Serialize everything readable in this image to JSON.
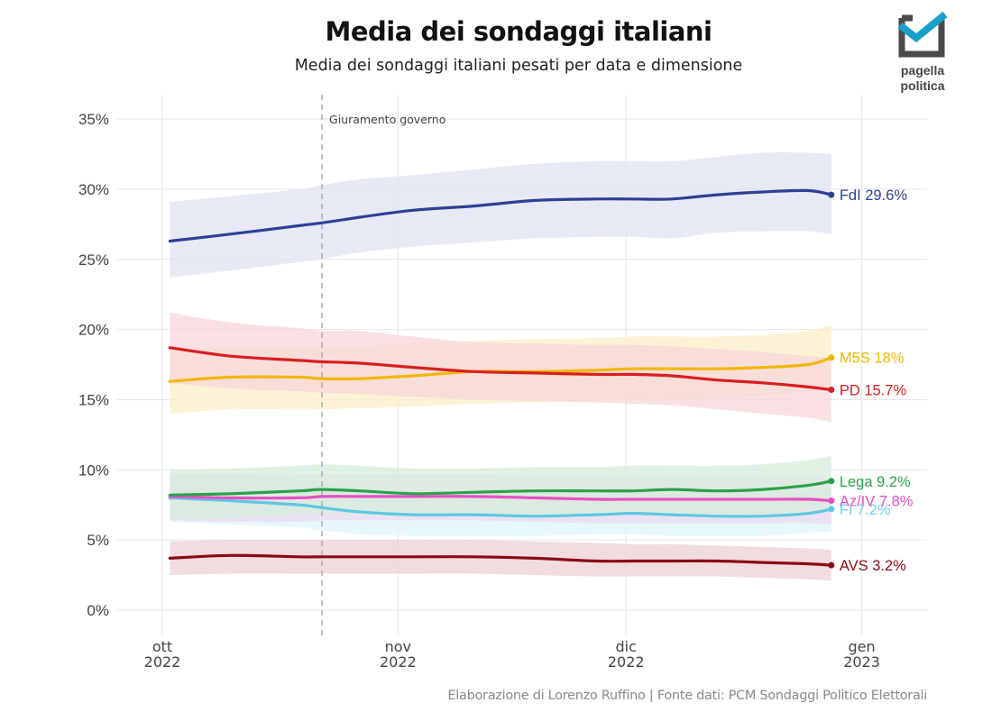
{
  "header": {
    "title": "Media dei sondaggi italiani",
    "subtitle": "Media dei sondaggi italiani pesati per data e dimensione"
  },
  "logo": {
    "icon": "checkbox-check-icon",
    "line1": "pagella",
    "line2": "politica",
    "colors": {
      "box": "#4a4a4a",
      "check": "#1aa0c8"
    }
  },
  "caption": "Elaborazione di Lorenzo Ruffino | Fonte dati: PCM Sondaggi Politico Elettorali",
  "chart_data": {
    "type": "line",
    "title": "Media dei sondaggi italiani",
    "subtitle": "Media dei sondaggi italiani pesati per data e dimensione",
    "xlabel": "",
    "ylabel": "",
    "x_unit": "days since 2022-10-01",
    "xlim": [
      -10,
      62
    ],
    "ylim": [
      -1.5,
      36
    ],
    "grid": true,
    "legend": "end-of-line labels (right)",
    "x_ticks": [
      {
        "day": 0,
        "line1": "ott",
        "line2": "2022"
      },
      {
        "day": 31,
        "line1": "nov",
        "line2": "2022"
      },
      {
        "day": 61,
        "line1": "dic",
        "line2": "2022"
      },
      {
        "day": 92,
        "line1": "gen",
        "line2": "2023"
      }
    ],
    "y_ticks": [
      {
        "value": 0,
        "label": "0%"
      },
      {
        "value": 5,
        "label": "5%"
      },
      {
        "value": 10,
        "label": "10%"
      },
      {
        "value": 15,
        "label": "15%"
      },
      {
        "value": 20,
        "label": "20%"
      },
      {
        "value": 25,
        "label": "25%"
      },
      {
        "value": 30,
        "label": "30%"
      },
      {
        "value": 35,
        "label": "35%"
      }
    ],
    "annotations": [
      {
        "day": 21,
        "label": "Giuramento governo",
        "style": "dashed-vertical"
      }
    ],
    "x": [
      1,
      9,
      18,
      21,
      26,
      33,
      41,
      49,
      57,
      62,
      67,
      73,
      79,
      85,
      88
    ],
    "series": [
      {
        "name": "FdI",
        "end_label": "FdI 29.6%",
        "color": "#2e3f96",
        "band_color": "#dfe3f2",
        "values": [
          26.3,
          26.8,
          27.4,
          27.6,
          28.0,
          28.5,
          28.8,
          29.2,
          29.3,
          29.3,
          29.3,
          29.6,
          29.8,
          29.9,
          29.6
        ],
        "lower": [
          23.7,
          24.2,
          24.8,
          25.0,
          25.5,
          25.9,
          26.2,
          26.5,
          26.6,
          26.6,
          26.5,
          26.9,
          27.0,
          27.0,
          26.8
        ],
        "upper": [
          29.1,
          29.5,
          30.0,
          30.3,
          30.7,
          31.0,
          31.4,
          31.8,
          32.0,
          32.0,
          32.0,
          32.3,
          32.6,
          32.6,
          32.5
        ]
      },
      {
        "name": "M5S",
        "end_label": "M5S 18%",
        "color": "#f2b705",
        "band_color": "#fbefc8",
        "values": [
          16.3,
          16.6,
          16.6,
          16.5,
          16.5,
          16.7,
          17.0,
          17.0,
          17.1,
          17.2,
          17.2,
          17.2,
          17.3,
          17.5,
          18.0
        ],
        "lower": [
          14.0,
          14.3,
          14.3,
          14.3,
          14.4,
          14.5,
          14.7,
          14.8,
          14.9,
          15.0,
          15.0,
          15.1,
          15.3,
          15.6,
          15.7
        ],
        "upper": [
          18.6,
          18.8,
          18.8,
          18.8,
          18.8,
          19.0,
          19.2,
          19.3,
          19.4,
          19.5,
          19.5,
          19.5,
          19.6,
          19.9,
          20.3
        ]
      },
      {
        "name": "PD",
        "end_label": "PD 15.7%",
        "color": "#d81e1e",
        "band_color": "#f7d5da",
        "values": [
          18.7,
          18.1,
          17.8,
          17.7,
          17.6,
          17.3,
          17.0,
          16.9,
          16.8,
          16.8,
          16.7,
          16.4,
          16.2,
          15.9,
          15.7
        ],
        "lower": [
          16.2,
          15.8,
          15.6,
          15.5,
          15.4,
          15.2,
          15.0,
          14.9,
          14.8,
          14.7,
          14.6,
          14.3,
          14.0,
          13.7,
          13.4
        ],
        "upper": [
          21.2,
          20.5,
          20.1,
          19.9,
          19.9,
          19.5,
          19.1,
          19.0,
          18.9,
          18.9,
          18.8,
          18.6,
          18.4,
          18.1,
          18.0
        ]
      },
      {
        "name": "Lega",
        "end_label": "Lega 9.2%",
        "color": "#2ba14a",
        "band_color": "#d6eedb",
        "values": [
          8.2,
          8.3,
          8.5,
          8.6,
          8.5,
          8.3,
          8.4,
          8.5,
          8.5,
          8.5,
          8.6,
          8.5,
          8.6,
          8.9,
          9.2
        ],
        "lower": [
          6.5,
          6.6,
          6.8,
          6.9,
          6.8,
          6.7,
          6.7,
          6.8,
          6.8,
          6.8,
          6.8,
          6.8,
          6.8,
          7.1,
          7.3
        ],
        "upper": [
          10.0,
          10.1,
          10.3,
          10.4,
          10.3,
          10.1,
          10.1,
          10.2,
          10.2,
          10.3,
          10.3,
          10.3,
          10.4,
          10.7,
          11.0
        ]
      },
      {
        "name": "Az/IV",
        "end_label": "Az/IV 7.8%",
        "color": "#e64fc2",
        "band_color": "#ecdaf2",
        "values": [
          8.1,
          8.0,
          8.0,
          8.1,
          8.1,
          8.1,
          8.1,
          8.0,
          7.9,
          7.9,
          7.9,
          7.9,
          7.9,
          7.9,
          7.8
        ],
        "lower": [
          6.4,
          6.3,
          6.3,
          6.4,
          6.4,
          6.4,
          6.4,
          6.3,
          6.2,
          6.2,
          6.2,
          6.2,
          6.2,
          6.2,
          6.1
        ],
        "upper": [
          9.7,
          9.7,
          9.7,
          9.7,
          9.7,
          9.7,
          9.7,
          9.6,
          9.5,
          9.5,
          9.5,
          9.5,
          9.5,
          9.5,
          9.4
        ]
      },
      {
        "name": "FI",
        "end_label": "FI 7.2%",
        "color": "#5ec8e3",
        "band_color": "#def6f9",
        "values": [
          8.0,
          7.8,
          7.5,
          7.3,
          7.0,
          6.8,
          6.8,
          6.7,
          6.8,
          6.9,
          6.8,
          6.7,
          6.7,
          6.9,
          7.2
        ],
        "lower": [
          6.3,
          6.1,
          5.9,
          5.7,
          5.4,
          5.3,
          5.3,
          5.3,
          5.4,
          5.4,
          5.3,
          5.3,
          5.3,
          5.5,
          5.6
        ],
        "upper": [
          9.8,
          9.6,
          9.3,
          9.1,
          8.7,
          8.4,
          8.4,
          8.3,
          8.3,
          8.4,
          8.3,
          8.2,
          8.2,
          8.4,
          8.7
        ]
      },
      {
        "name": "AVS",
        "end_label": "AVS 3.2%",
        "color": "#8b0a16",
        "band_color": "#ecd2d6",
        "values": [
          3.7,
          3.9,
          3.8,
          3.8,
          3.8,
          3.8,
          3.8,
          3.7,
          3.5,
          3.5,
          3.5,
          3.5,
          3.4,
          3.3,
          3.2
        ],
        "lower": [
          2.5,
          2.6,
          2.6,
          2.6,
          2.6,
          2.6,
          2.6,
          2.5,
          2.4,
          2.4,
          2.4,
          2.4,
          2.3,
          2.2,
          2.1
        ],
        "upper": [
          4.9,
          5.0,
          5.0,
          5.0,
          5.0,
          5.0,
          5.0,
          4.9,
          4.8,
          4.7,
          4.7,
          4.6,
          4.5,
          4.4,
          4.3
        ]
      }
    ],
    "end_label_order": [
      "FdI",
      "M5S",
      "PD",
      "Lega",
      "Az/IV",
      "FI",
      "AVS"
    ]
  }
}
